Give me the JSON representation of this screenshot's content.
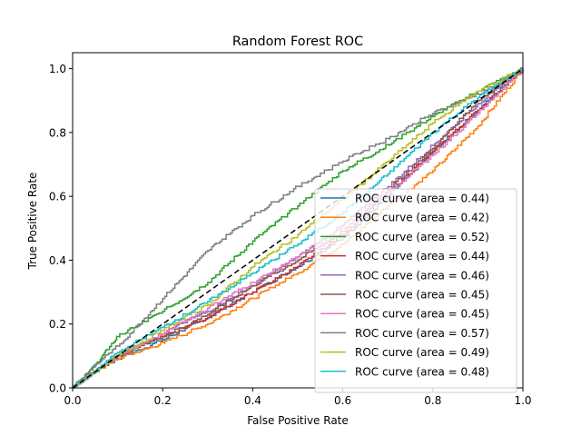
{
  "chart_data": {
    "type": "line",
    "title": "Random Forest ROC",
    "xlabel": "False Positive Rate",
    "ylabel": "True Positive Rate",
    "xlim": [
      0.0,
      1.0
    ],
    "ylim": [
      0.0,
      1.05
    ],
    "xticks": [
      "0.0",
      "0.2",
      "0.4",
      "0.6",
      "0.8",
      "1.0"
    ],
    "yticks": [
      "0.0",
      "0.2",
      "0.4",
      "0.6",
      "0.8",
      "1.0"
    ],
    "grid": false,
    "legend_position": "lower right",
    "diagonal": {
      "x": [
        0,
        1
      ],
      "y": [
        0,
        1
      ],
      "color": "#000000",
      "style": "dashed"
    },
    "series": [
      {
        "name": "ROC curve (area = 0.44)",
        "color": "#1f77b4",
        "x": [
          0,
          0.05,
          0.1,
          0.2,
          0.3,
          0.4,
          0.5,
          0.6,
          0.7,
          0.8,
          0.9,
          1.0
        ],
        "y": [
          0,
          0.05,
          0.09,
          0.15,
          0.22,
          0.3,
          0.38,
          0.47,
          0.6,
          0.74,
          0.87,
          1.0
        ]
      },
      {
        "name": "ROC curve (area = 0.42)",
        "color": "#ff7f0e",
        "x": [
          0,
          0.05,
          0.1,
          0.2,
          0.3,
          0.4,
          0.5,
          0.6,
          0.7,
          0.8,
          0.9,
          1.0
        ],
        "y": [
          0,
          0.05,
          0.09,
          0.14,
          0.2,
          0.28,
          0.36,
          0.45,
          0.57,
          0.68,
          0.82,
          1.0
        ]
      },
      {
        "name": "ROC curve (area = 0.52)",
        "color": "#2ca02c",
        "x": [
          0,
          0.05,
          0.1,
          0.2,
          0.3,
          0.4,
          0.5,
          0.6,
          0.7,
          0.8,
          0.9,
          1.0
        ],
        "y": [
          0,
          0.07,
          0.16,
          0.24,
          0.33,
          0.46,
          0.57,
          0.68,
          0.76,
          0.85,
          0.93,
          1.0
        ]
      },
      {
        "name": "ROC curve (area = 0.44)",
        "color": "#d62728",
        "x": [
          0,
          0.05,
          0.1,
          0.2,
          0.3,
          0.4,
          0.5,
          0.6,
          0.7,
          0.8,
          0.9,
          1.0
        ],
        "y": [
          0,
          0.05,
          0.1,
          0.16,
          0.22,
          0.3,
          0.38,
          0.48,
          0.61,
          0.74,
          0.87,
          1.0
        ]
      },
      {
        "name": "ROC curve (area = 0.46)",
        "color": "#9467bd",
        "x": [
          0,
          0.05,
          0.1,
          0.2,
          0.3,
          0.4,
          0.5,
          0.6,
          0.7,
          0.8,
          0.9,
          1.0
        ],
        "y": [
          0,
          0.05,
          0.1,
          0.17,
          0.24,
          0.32,
          0.41,
          0.51,
          0.63,
          0.76,
          0.89,
          1.0
        ]
      },
      {
        "name": "ROC curve (area = 0.45)",
        "color": "#8c564b",
        "x": [
          0,
          0.05,
          0.1,
          0.2,
          0.3,
          0.4,
          0.5,
          0.6,
          0.7,
          0.8,
          0.9,
          1.0
        ],
        "y": [
          0,
          0.05,
          0.1,
          0.16,
          0.23,
          0.32,
          0.4,
          0.49,
          0.62,
          0.75,
          0.9,
          1.0
        ]
      },
      {
        "name": "ROC curve (area = 0.45)",
        "color": "#e377c2",
        "x": [
          0,
          0.05,
          0.1,
          0.2,
          0.3,
          0.4,
          0.5,
          0.6,
          0.7,
          0.8,
          0.9,
          1.0
        ],
        "y": [
          0,
          0.05,
          0.1,
          0.17,
          0.25,
          0.33,
          0.41,
          0.5,
          0.61,
          0.73,
          0.86,
          1.0
        ]
      },
      {
        "name": "ROC curve (area = 0.57)",
        "color": "#7f7f7f",
        "x": [
          0,
          0.05,
          0.1,
          0.2,
          0.3,
          0.4,
          0.5,
          0.6,
          0.7,
          0.8,
          0.9,
          1.0
        ],
        "y": [
          0,
          0.07,
          0.13,
          0.28,
          0.43,
          0.54,
          0.63,
          0.71,
          0.78,
          0.86,
          0.92,
          1.0
        ]
      },
      {
        "name": "ROC curve (area = 0.49)",
        "color": "#bcbd22",
        "x": [
          0,
          0.05,
          0.1,
          0.2,
          0.3,
          0.4,
          0.5,
          0.6,
          0.7,
          0.8,
          0.9,
          1.0
        ],
        "y": [
          0,
          0.05,
          0.1,
          0.18,
          0.26,
          0.38,
          0.48,
          0.59,
          0.71,
          0.83,
          0.93,
          1.0
        ]
      },
      {
        "name": "ROC curve (area = 0.48)",
        "color": "#17becf",
        "x": [
          0,
          0.05,
          0.1,
          0.2,
          0.3,
          0.4,
          0.5,
          0.6,
          0.7,
          0.8,
          0.9,
          1.0
        ],
        "y": [
          0,
          0.05,
          0.11,
          0.19,
          0.27,
          0.36,
          0.45,
          0.55,
          0.67,
          0.8,
          0.91,
          1.0
        ]
      }
    ]
  }
}
